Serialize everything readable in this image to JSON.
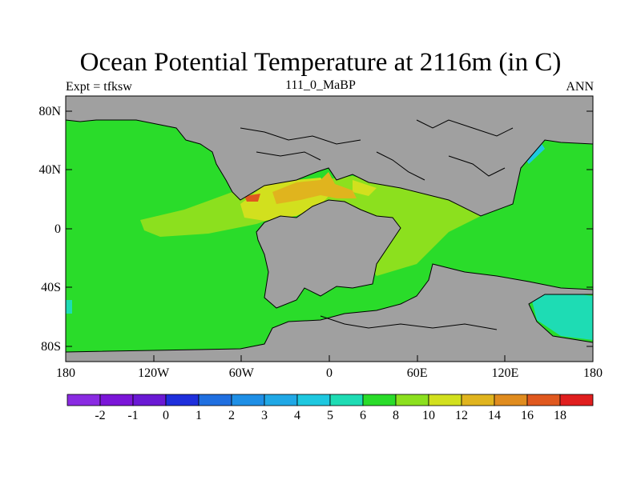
{
  "title": "Ocean Potential Temperature at 2116m (in C)",
  "left_label": "Expt = tfksw",
  "center_label": "111_0_MaBP",
  "right_label": "ANN",
  "map": {
    "projection": "cylindrical equidistant",
    "land_color": "#a0a0a0",
    "lat_ticks": [
      "80N",
      "40N",
      "0",
      "40S",
      "80S"
    ],
    "lon_ticks": [
      "180",
      "120W",
      "60W",
      "0",
      "60E",
      "120E",
      "180"
    ]
  },
  "colorbar": {
    "colors": [
      "#8a2be2",
      "#7b16d8",
      "#6a19d4",
      "#1e2fdc",
      "#1f6fe0",
      "#1e8fe6",
      "#20a8e6",
      "#1ec8e0",
      "#1edcb4",
      "#2adc2a",
      "#8ce01e",
      "#d2e01e",
      "#e0b41e",
      "#e08c1e",
      "#e0581e",
      "#e01e1e"
    ],
    "labels": [
      "-2",
      "-1",
      "0",
      "1",
      "2",
      "3",
      "4",
      "5",
      "6",
      "8",
      "10",
      "12",
      "14",
      "16",
      "18"
    ]
  }
}
